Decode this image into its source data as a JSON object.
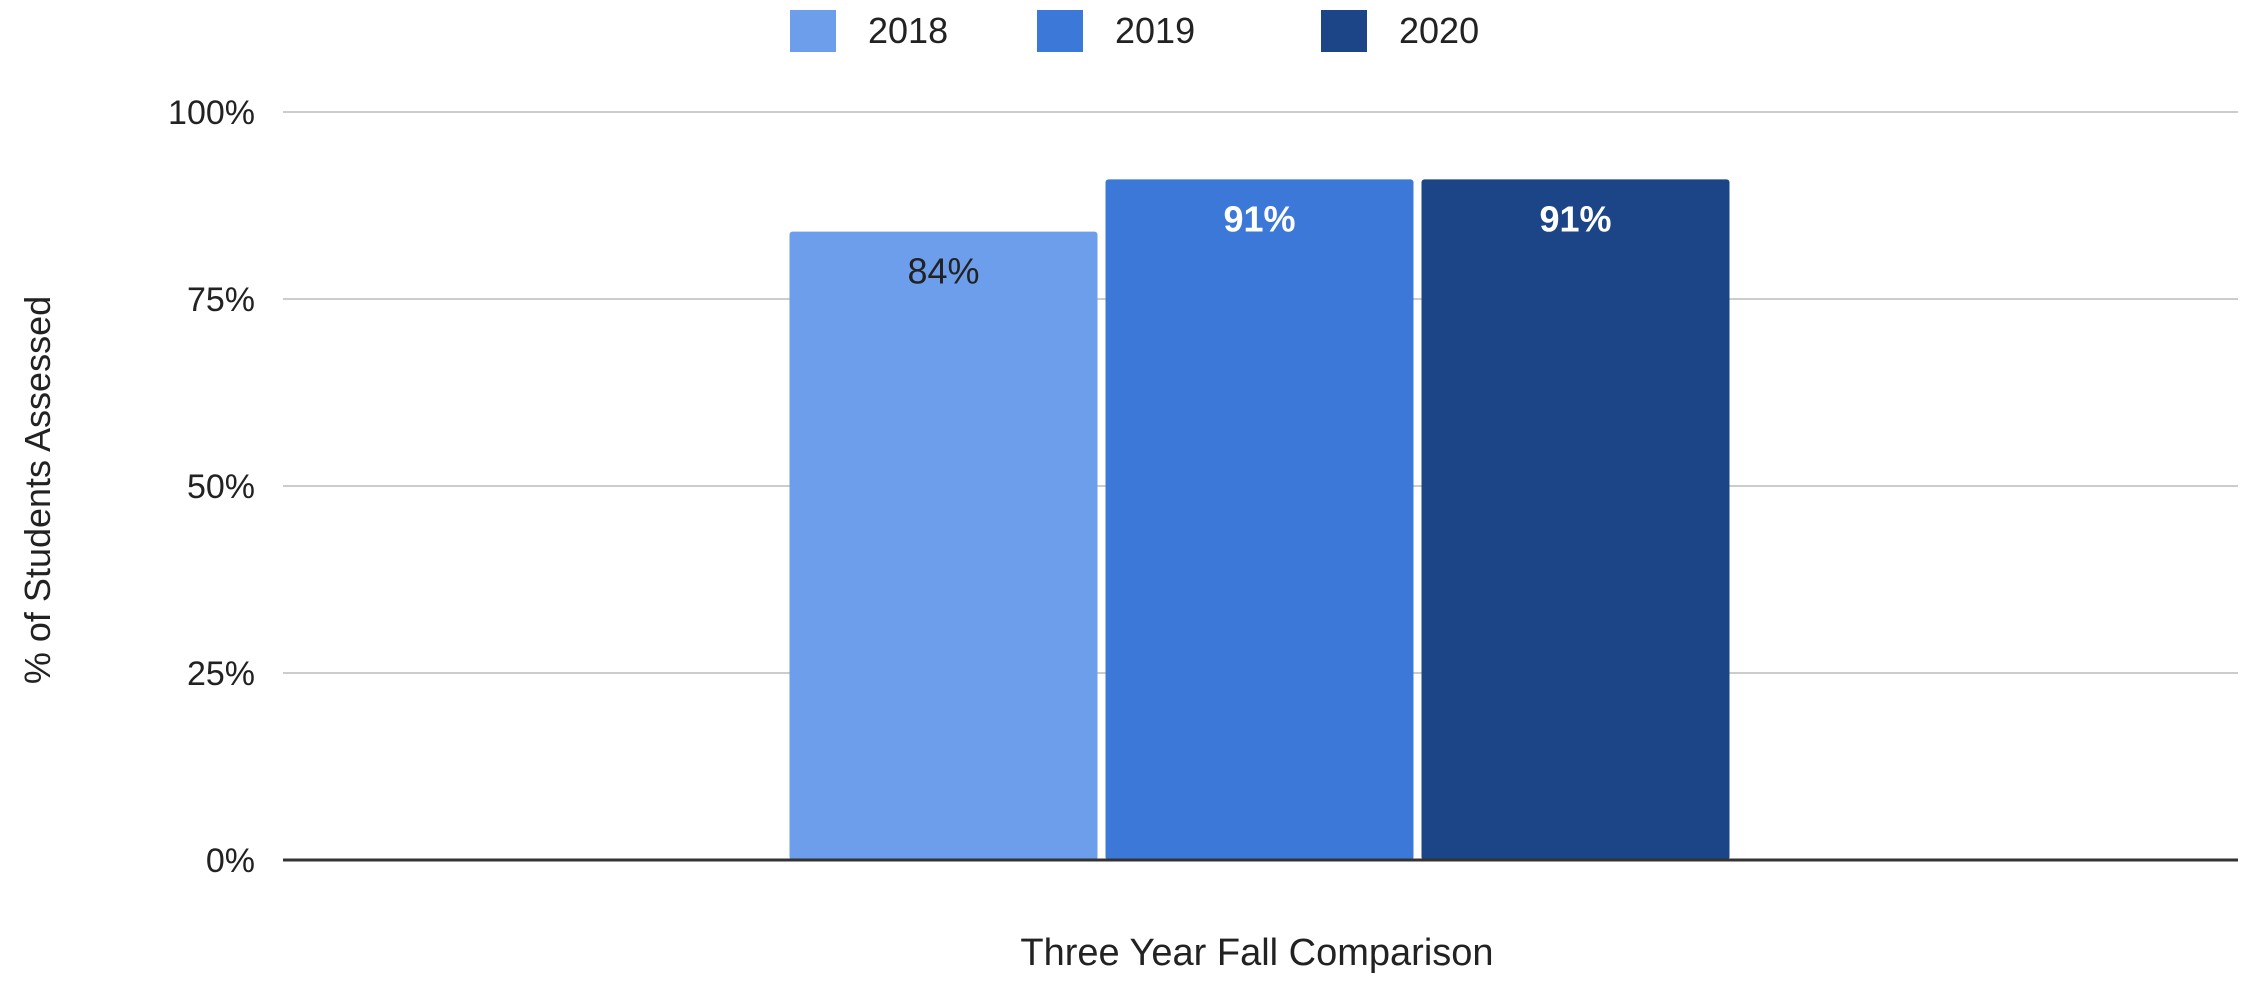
{
  "chart_data": {
    "type": "bar",
    "title": "",
    "xlabel": "Three Year Fall Comparison",
    "ylabel": "% of Students Assessed",
    "ylim": [
      0,
      100
    ],
    "yticks": [
      "0%",
      "25%",
      "50%",
      "75%",
      "100%"
    ],
    "ytick_values": [
      0,
      25,
      50,
      75,
      100
    ],
    "grid": true,
    "legend_position": "top-center",
    "categories": [
      ""
    ],
    "series": [
      {
        "name": "2018",
        "values": [
          84
        ],
        "label": "84%",
        "color": "#6d9eeb",
        "label_color": "#222222"
      },
      {
        "name": "2019",
        "values": [
          91
        ],
        "label": "91%",
        "color": "#3c78d8",
        "label_color": "#ffffff"
      },
      {
        "name": "2020",
        "values": [
          91
        ],
        "label": "91%",
        "color": "#1c4587",
        "label_color": "#ffffff"
      }
    ]
  }
}
